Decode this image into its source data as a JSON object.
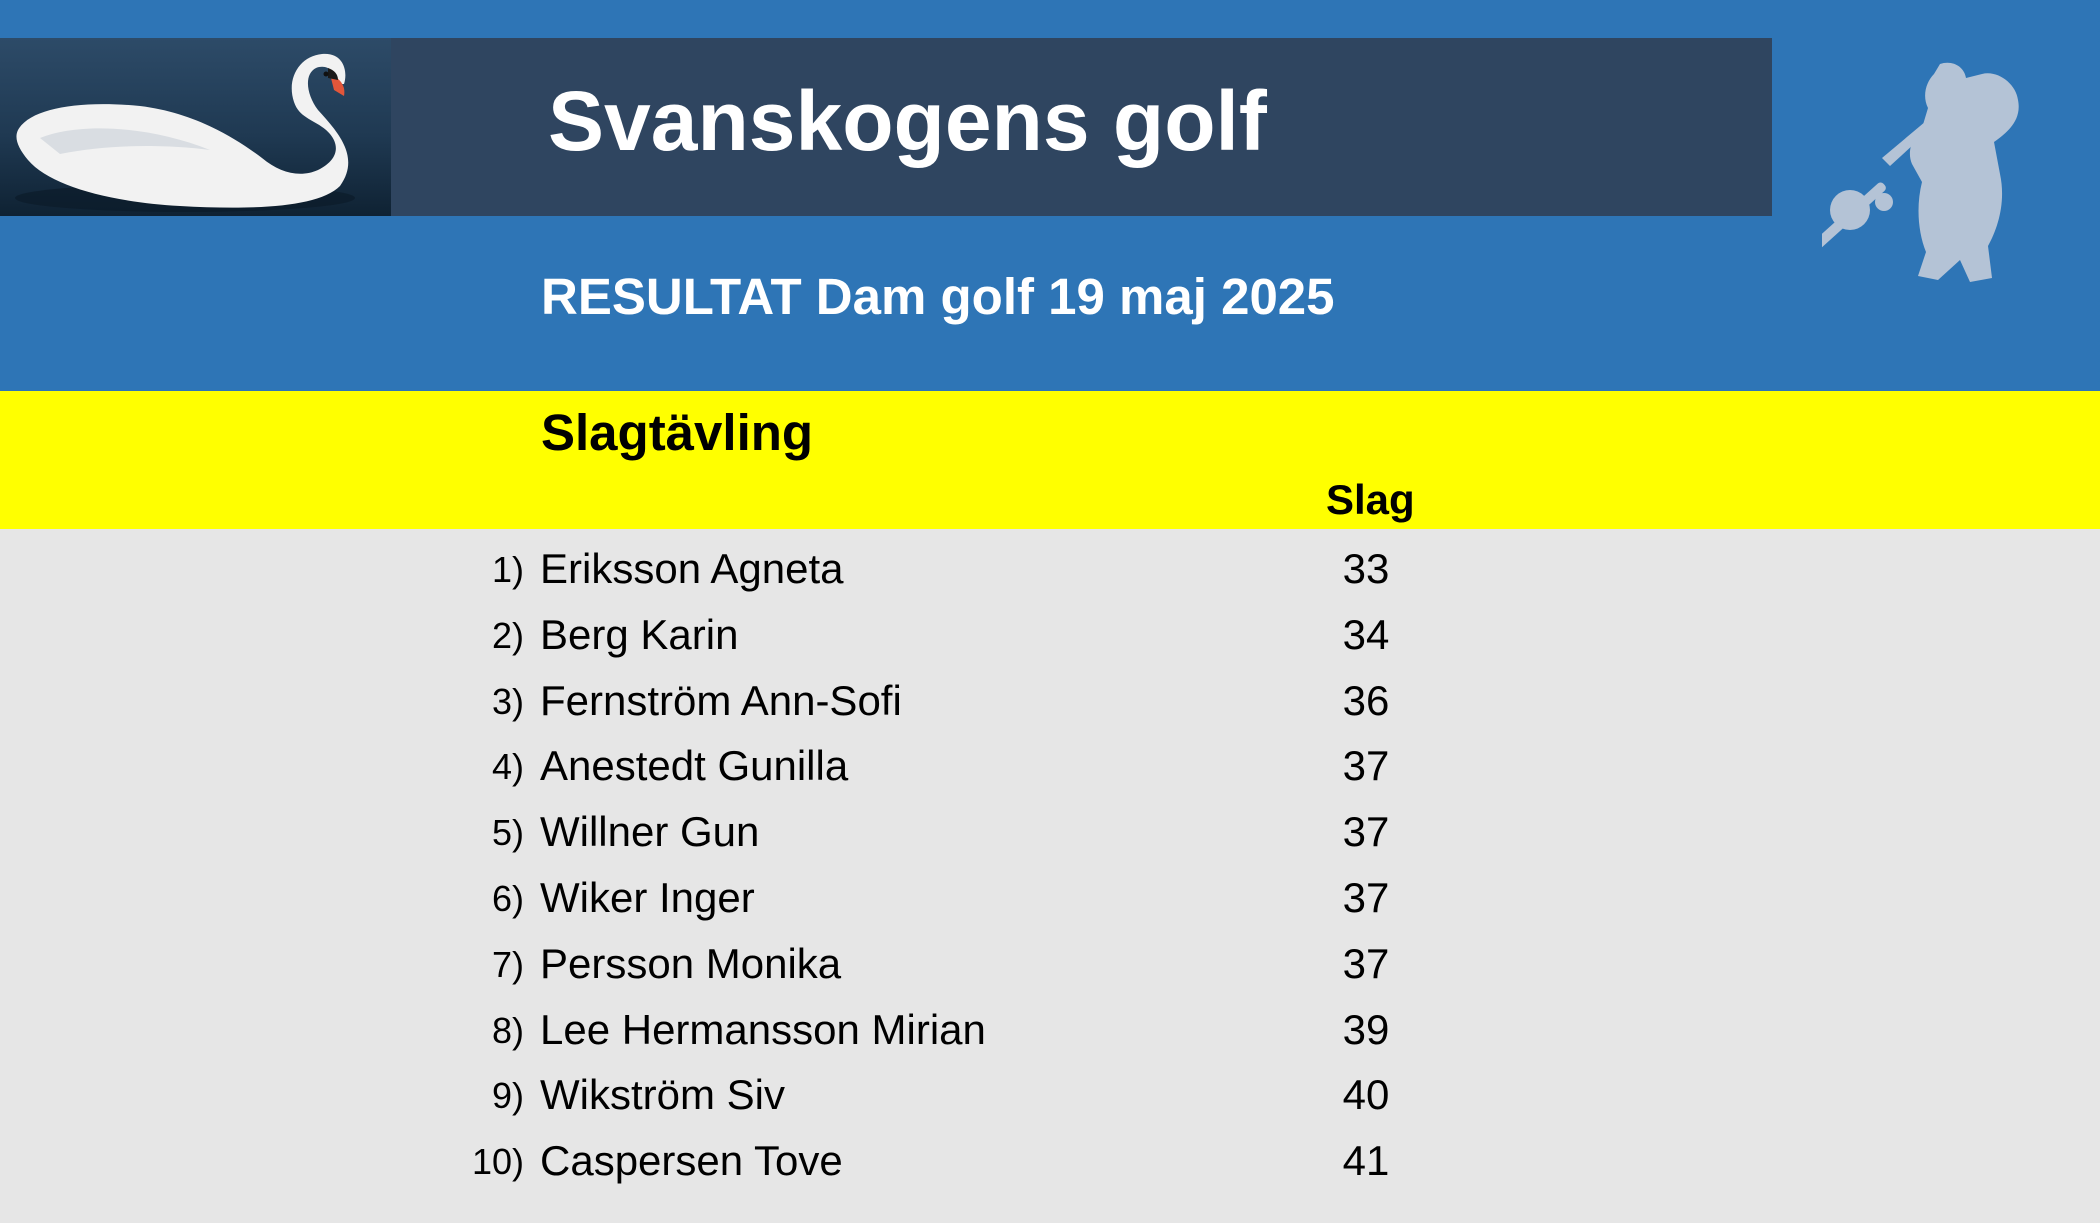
{
  "header": {
    "title": "Svanskogens golf",
    "subtitle": "RESULTAT Dam golf 19 maj 2025"
  },
  "section": {
    "title": "Slagtävling",
    "score_header": "Slag"
  },
  "results": [
    {
      "rank": "1)",
      "name": "Eriksson Agneta",
      "score": "33"
    },
    {
      "rank": "2)",
      "name": "Berg Karin",
      "score": "34"
    },
    {
      "rank": "3)",
      "name": "Fernström Ann-Sofi",
      "score": "36"
    },
    {
      "rank": "4)",
      "name": "Anestedt Gunilla",
      "score": "37"
    },
    {
      "rank": "5)",
      "name": "Willner Gun",
      "score": "37"
    },
    {
      "rank": "6)",
      "name": "Wiker Inger",
      "score": "37"
    },
    {
      "rank": "7)",
      "name": "Persson Monika",
      "score": "37"
    },
    {
      "rank": "8)",
      "name": "Lee Hermansson Mirian",
      "score": "39"
    },
    {
      "rank": "9)",
      "name": "Wikström Siv",
      "score": "40"
    },
    {
      "rank": "10)",
      "name": "Caspersen Tove",
      "score": "41"
    }
  ],
  "images": {
    "swan": "swan-photo",
    "golfer": "golfer-silhouette-icon"
  },
  "colors": {
    "header_blue": "#2e75b6",
    "title_bar": "#2f4560",
    "highlight_yellow": "#ffff00",
    "background_gray": "#e6e6e6"
  }
}
